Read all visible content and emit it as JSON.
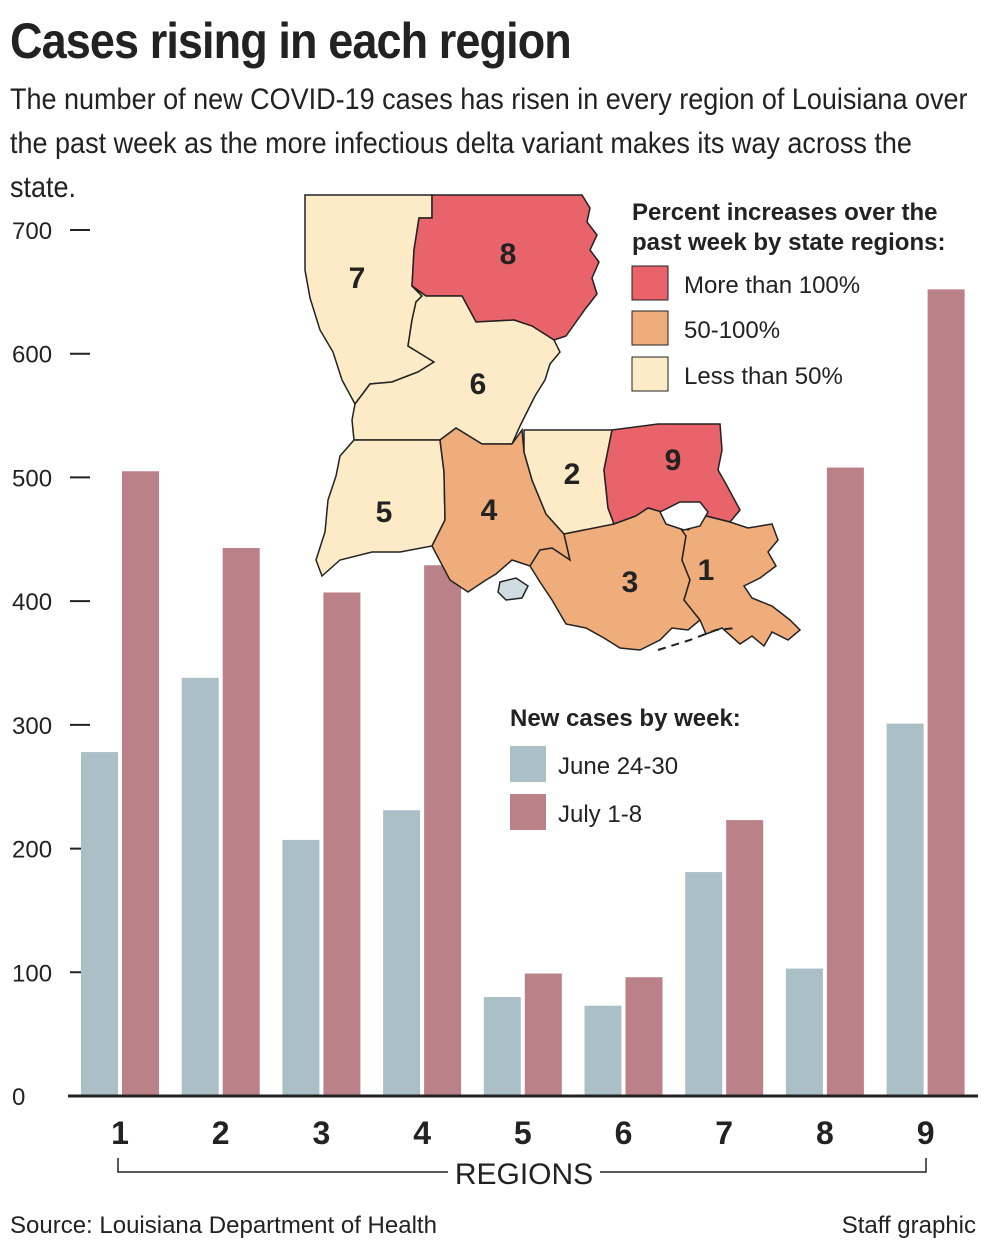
{
  "title": "Cases rising in each region",
  "subtitle": "The number of new COVID-19 cases has risen in every region of Louisiana over the past week as the more infectious delta variant makes its way across the state.",
  "source": "Source: Louisiana Department of Health",
  "credit": "Staff graphic",
  "colors": {
    "june": "#abbfc6",
    "july": "#bb8188",
    "more_than_100": "#e8636a",
    "fifty_100": "#f0ad7c",
    "less_than_50": "#fcebc6",
    "axis": "#222222"
  },
  "map_legend": {
    "title_lines": [
      "Percent increases over the",
      "past week by state regions:"
    ],
    "items": [
      {
        "label": "More than 100%",
        "color": "#e8636a"
      },
      {
        "label": "50-100%",
        "color": "#f0ad7c"
      },
      {
        "label": "Less than 50%",
        "color": "#fcebc6"
      }
    ]
  },
  "map_regions": [
    {
      "id": "1",
      "category": "50-100%"
    },
    {
      "id": "2",
      "category": "Less than 50%"
    },
    {
      "id": "3",
      "category": "50-100%"
    },
    {
      "id": "4",
      "category": "50-100%"
    },
    {
      "id": "5",
      "category": "Less than 50%"
    },
    {
      "id": "6",
      "category": "Less than 50%"
    },
    {
      "id": "7",
      "category": "Less than 50%"
    },
    {
      "id": "8",
      "category": "More than 100%"
    },
    {
      "id": "9",
      "category": "More than 100%"
    }
  ],
  "chart_data": {
    "type": "bar",
    "title": "",
    "xlabel": "REGIONS",
    "ylabel": "",
    "categories": [
      "1",
      "2",
      "3",
      "4",
      "5",
      "6",
      "7",
      "8",
      "9"
    ],
    "legend_title": "New cases by week:",
    "series": [
      {
        "name": "June 24-30",
        "values": [
          278,
          338,
          207,
          231,
          80,
          73,
          181,
          103,
          301
        ]
      },
      {
        "name": "July 1-8",
        "values": [
          505,
          443,
          407,
          429,
          99,
          96,
          223,
          508,
          652
        ]
      }
    ],
    "ylim": [
      0,
      700
    ],
    "yticks": [
      "0",
      "100",
      "200",
      "300",
      "400",
      "500",
      "600",
      "700"
    ],
    "grid": false,
    "legend_position": "center-right"
  }
}
